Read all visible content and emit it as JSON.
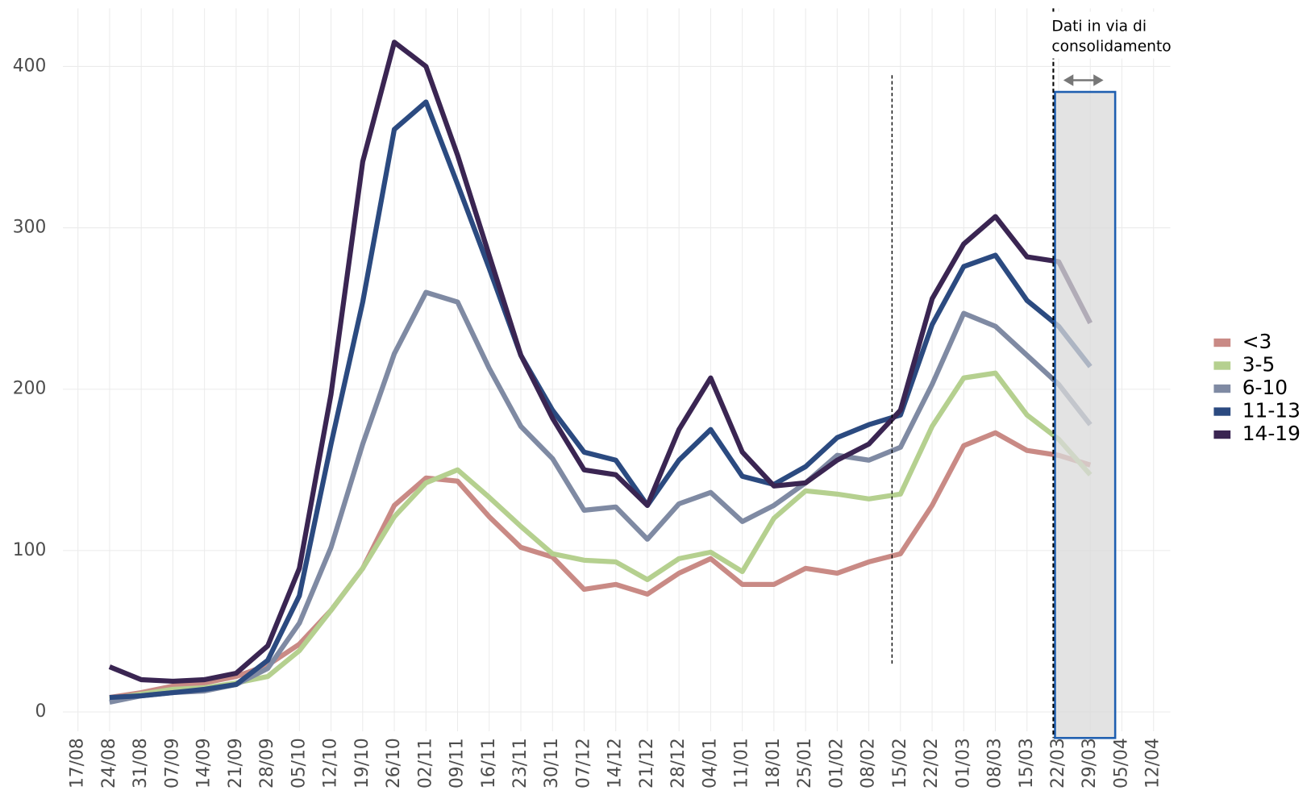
{
  "chart_data": {
    "type": "line",
    "categories": [
      "17/08",
      "24/08",
      "31/08",
      "07/09",
      "14/09",
      "21/09",
      "28/09",
      "05/10",
      "12/10",
      "19/10",
      "26/10",
      "02/11",
      "09/11",
      "16/11",
      "23/11",
      "30/11",
      "07/12",
      "14/12",
      "21/12",
      "28/12",
      "04/01",
      "11/01",
      "18/01",
      "25/01",
      "01/02",
      "08/02",
      "15/02",
      "22/02",
      "01/03",
      "08/03",
      "15/03",
      "22/03",
      "29/03",
      "05/04",
      "12/04"
    ],
    "series": [
      {
        "name": "<3",
        "color": "#c98a85",
        "values": [
          null,
          9,
          12,
          16,
          18,
          22,
          29,
          42,
          63,
          89,
          128,
          145,
          143,
          121,
          102,
          96,
          76,
          79,
          73,
          86,
          95,
          79,
          79,
          89,
          86,
          93,
          98,
          128,
          165,
          173,
          162,
          159,
          153,
          null,
          null
        ]
      },
      {
        "name": "3-5",
        "color": "#b5d08f",
        "values": [
          null,
          8,
          11,
          14,
          15,
          18,
          22,
          38,
          63,
          89,
          121,
          142,
          150,
          133,
          115,
          98,
          94,
          93,
          82,
          95,
          99,
          87,
          120,
          137,
          135,
          132,
          135,
          177,
          207,
          210,
          184,
          169,
          147,
          null,
          null
        ]
      },
      {
        "name": "6-10",
        "color": "#7f8aa3",
        "values": [
          null,
          6,
          10,
          12,
          13,
          17,
          27,
          55,
          102,
          166,
          222,
          260,
          254,
          213,
          177,
          157,
          125,
          127,
          107,
          129,
          136,
          118,
          128,
          142,
          159,
          156,
          164,
          203,
          247,
          239,
          221,
          203,
          178,
          null,
          null
        ]
      },
      {
        "name": "11-13",
        "color": "#2b4a80",
        "values": [
          null,
          9,
          10,
          12,
          14,
          17,
          32,
          72,
          166,
          254,
          361,
          378,
          327,
          275,
          221,
          187,
          161,
          156,
          128,
          156,
          175,
          146,
          141,
          152,
          170,
          178,
          184,
          240,
          276,
          283,
          255,
          239,
          214,
          null,
          null
        ]
      },
      {
        "name": "14-19",
        "color": "#3a2552",
        "values": [
          null,
          28,
          20,
          19,
          20,
          24,
          41,
          89,
          197,
          341,
          415,
          400,
          345,
          283,
          221,
          182,
          150,
          147,
          128,
          175,
          207,
          161,
          140,
          142,
          156,
          166,
          187,
          256,
          290,
          307,
          282,
          279,
          241,
          null,
          null
        ]
      }
    ],
    "ylim": [
      -12,
      436
    ],
    "yticks": [
      0,
      100,
      200,
      300,
      400
    ],
    "grid": true,
    "annotation": [
      "Dati in via di",
      "consolidamento"
    ]
  }
}
